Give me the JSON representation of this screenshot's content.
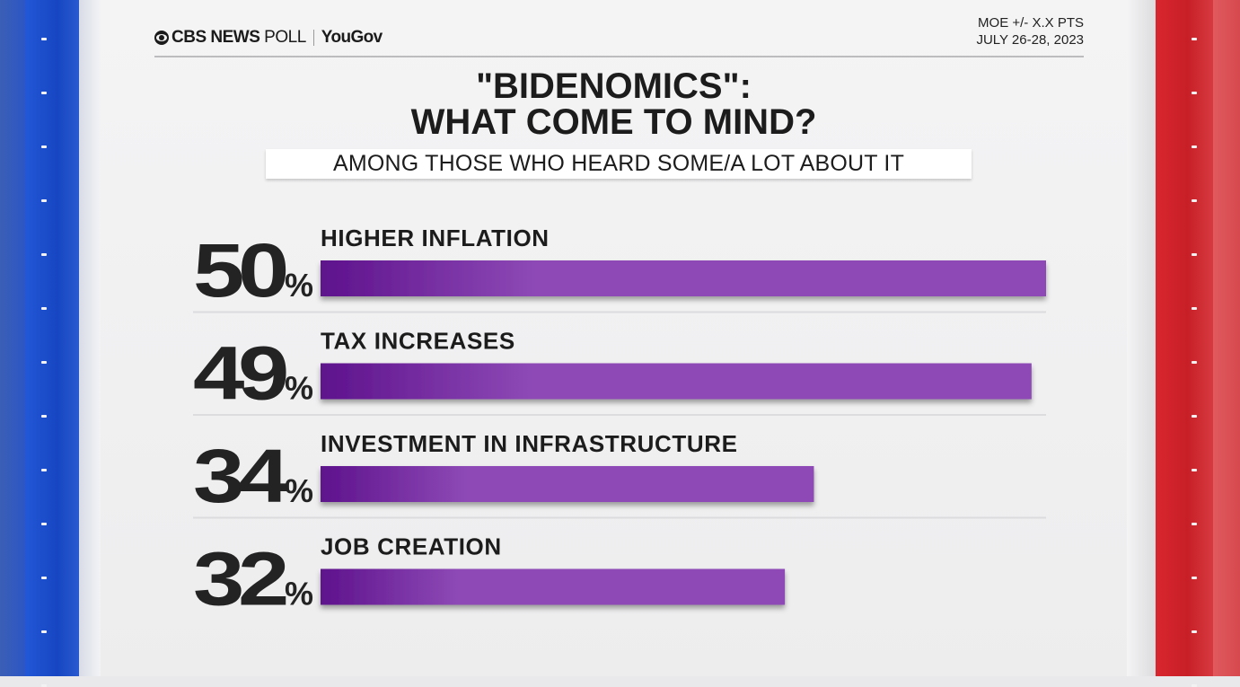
{
  "header": {
    "brand_bold": "CBS NEWS",
    "brand_regular": " POLL",
    "partner": "YouGov",
    "moe": "MOE +/- X.X PTS",
    "date": "JULY 26-28, 2023"
  },
  "colors": {
    "bar_start": "#5e128c",
    "bar_end": "#8e4ab6",
    "blue_stripe": "#1f4fd0",
    "red_stripe": "#cc2229"
  },
  "chart_data": {
    "type": "bar",
    "orientation": "horizontal",
    "title": "\"BIDENOMICS\": WHAT  COME TO MIND?",
    "title_lines": [
      "\"BIDENOMICS\":",
      "WHAT  COME TO MIND?"
    ],
    "subtitle": "AMONG THOSE WHO HEARD SOME/A LOT ABOUT IT",
    "categories": [
      "HIGHER INFLATION",
      "TAX INCREASES",
      "INVESTMENT IN INFRASTRUCTURE",
      "JOB CREATION"
    ],
    "values": [
      50,
      49,
      34,
      32
    ],
    "value_suffix": "%",
    "xlim": [
      0,
      50
    ],
    "grid": false,
    "legend": "none"
  }
}
